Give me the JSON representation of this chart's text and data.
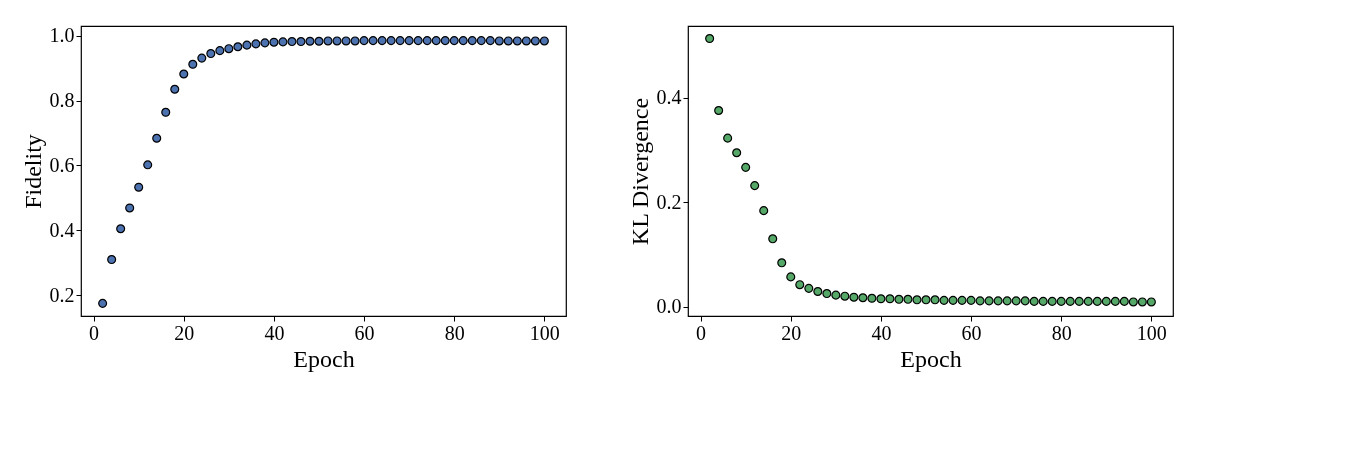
{
  "chart_data": [
    {
      "type": "scatter",
      "xlabel": "Epoch",
      "ylabel": "Fidelity",
      "marker": "circle",
      "grid": false,
      "xlim": [
        -2.8,
        104.8
      ],
      "ylim": [
        0.136,
        1.03
      ],
      "xticks": [
        0,
        20,
        40,
        60,
        80,
        100
      ],
      "yticks": [
        0.2,
        0.4,
        0.6,
        0.8,
        {
          "value": 1,
          "label": "1.0"
        }
      ],
      "x": [
        2,
        4,
        6,
        8,
        10,
        12,
        14,
        16,
        18,
        20,
        22,
        24,
        26,
        28,
        30,
        32,
        34,
        36,
        38,
        40,
        42,
        44,
        46,
        48,
        50,
        52,
        54,
        56,
        58,
        60,
        62,
        64,
        66,
        68,
        70,
        72,
        74,
        76,
        78,
        80,
        82,
        84,
        86,
        88,
        90,
        92,
        94,
        96,
        98,
        100
      ],
      "series": [
        {
          "color": "#4c72b0",
          "values": [
            0.175,
            0.31,
            0.405,
            0.469,
            0.533,
            0.602,
            0.684,
            0.764,
            0.835,
            0.882,
            0.912,
            0.931,
            0.945,
            0.954,
            0.96,
            0.966,
            0.971,
            0.975,
            0.978,
            0.98,
            0.981,
            0.982,
            0.982,
            0.983,
            0.983,
            0.984,
            0.984,
            0.984,
            0.984,
            0.985,
            0.985,
            0.985,
            0.985,
            0.985,
            0.985,
            0.985,
            0.985,
            0.985,
            0.985,
            0.985,
            0.985,
            0.985,
            0.985,
            0.985,
            0.984,
            0.984,
            0.984,
            0.984,
            0.984,
            0.984
          ]
        }
      ]
    },
    {
      "type": "scatter",
      "xlabel": "Epoch",
      "ylabel": "KL Divergence",
      "marker": "circle",
      "grid": false,
      "xlim": [
        -2.8,
        104.8
      ],
      "ylim": [
        -0.018,
        0.538
      ],
      "xticks": [
        0,
        20,
        40,
        60,
        80,
        100
      ],
      "yticks": [
        {
          "value": 0,
          "label": "0.0"
        },
        0.2,
        0.4
      ],
      "x": [
        2,
        4,
        6,
        8,
        10,
        12,
        14,
        16,
        18,
        20,
        22,
        24,
        26,
        28,
        30,
        32,
        34,
        36,
        38,
        40,
        42,
        44,
        46,
        48,
        50,
        52,
        54,
        56,
        58,
        60,
        62,
        64,
        66,
        68,
        70,
        72,
        74,
        76,
        78,
        80,
        82,
        84,
        86,
        88,
        90,
        92,
        94,
        96,
        98,
        100
      ],
      "series": [
        {
          "color": "#55a868",
          "values": [
            0.514,
            0.376,
            0.323,
            0.295,
            0.267,
            0.232,
            0.184,
            0.13,
            0.084,
            0.057,
            0.042,
            0.035,
            0.029,
            0.025,
            0.022,
            0.02,
            0.018,
            0.017,
            0.016,
            0.015,
            0.015,
            0.014,
            0.014,
            0.013,
            0.013,
            0.013,
            0.012,
            0.012,
            0.012,
            0.012,
            0.011,
            0.011,
            0.011,
            0.011,
            0.011,
            0.011,
            0.01,
            0.01,
            0.01,
            0.01,
            0.01,
            0.01,
            0.01,
            0.01,
            0.01,
            0.01,
            0.01,
            0.009,
            0.009,
            0.009
          ]
        }
      ]
    }
  ]
}
